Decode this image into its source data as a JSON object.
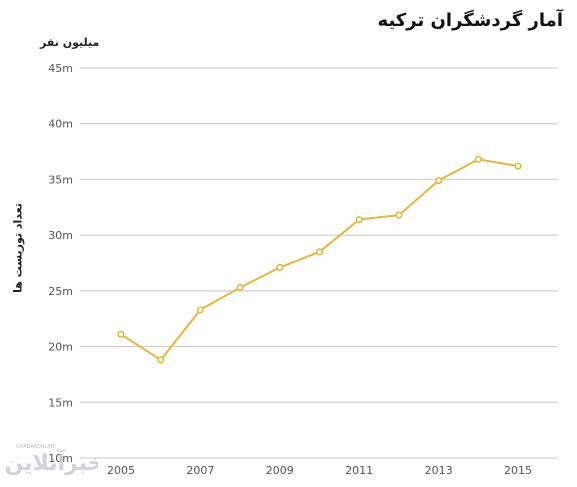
{
  "chart_data": {
    "type": "line",
    "title": "آمار گردشگران ترکیه",
    "unit_label": "میلیون نفر",
    "ylabel": "تعداد توریست ها",
    "xlabel": "",
    "x": [
      2005,
      2006,
      2007,
      2008,
      2009,
      2010,
      2011,
      2012,
      2013,
      2014,
      2015
    ],
    "x_tick_labels": [
      "2005",
      "2007",
      "2009",
      "2011",
      "2013",
      "2015"
    ],
    "y_tick_labels": [
      "10m",
      "15m",
      "20m",
      "25m",
      "30m",
      "35m",
      "40m",
      "45m"
    ],
    "ylim": [
      10,
      45
    ],
    "grid": true,
    "series": [
      {
        "values": [
          21.1,
          18.8,
          23.3,
          25.3,
          27.1,
          28.5,
          31.4,
          31.8,
          34.9,
          36.8,
          36.2
        ],
        "color": "#e0b93e"
      }
    ]
  },
  "watermark": {
    "text": "خبرآنلاین",
    "subtext": "KHABARONLINE"
  }
}
